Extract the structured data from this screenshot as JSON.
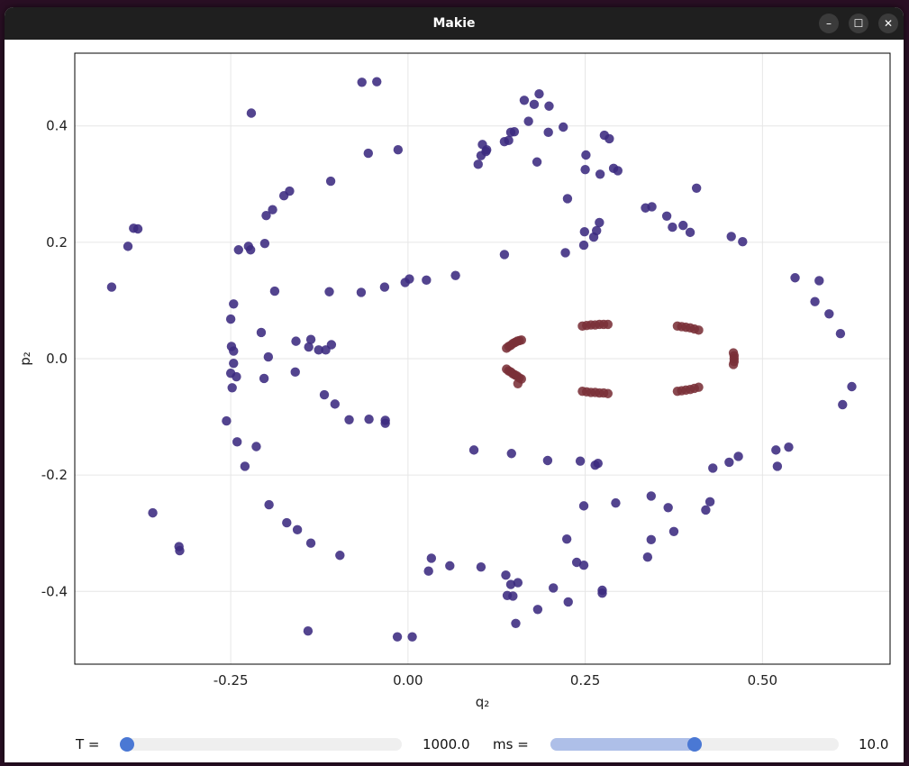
{
  "window": {
    "title": "Makie"
  },
  "window_controls": {
    "minimize": "–",
    "maximize": "☐",
    "close": "✕"
  },
  "controls": {
    "T": {
      "label": "T =",
      "value": "1000.0",
      "fraction": 0.0
    },
    "ms": {
      "label": "ms =",
      "value": "10.0",
      "fraction": 0.5
    }
  },
  "chart_data": {
    "type": "scatter",
    "xlabel": "q₂",
    "ylabel": "p₂",
    "xlim": [
      -0.47,
      0.68
    ],
    "ylim": [
      -0.525,
      0.525
    ],
    "xticks": [
      -0.25,
      0.0,
      0.25,
      0.5
    ],
    "xtick_labels": [
      "-0.25",
      "0.00",
      "0.25",
      "0.50"
    ],
    "yticks": [
      -0.4,
      -0.2,
      0.0,
      0.2,
      0.4
    ],
    "ytick_labels": [
      "-0.4",
      "-0.2",
      "0.0",
      "0.2",
      "0.4"
    ],
    "grid": true,
    "colors": {
      "outer": "#3b2a80",
      "inner": "#7a3038"
    },
    "series": [
      {
        "color": "#3b2a80",
        "points": [
          [
            -0.418,
            0.123
          ],
          [
            -0.395,
            0.193
          ],
          [
            -0.387,
            0.224
          ],
          [
            -0.381,
            0.223
          ],
          [
            -0.36,
            -0.265
          ],
          [
            -0.323,
            -0.323
          ],
          [
            -0.322,
            -0.33
          ],
          [
            -0.221,
            0.422
          ],
          [
            -0.239,
            0.187
          ],
          [
            -0.225,
            0.193
          ],
          [
            -0.222,
            0.187
          ],
          [
            -0.202,
            0.198
          ],
          [
            -0.2,
            0.246
          ],
          [
            -0.191,
            0.256
          ],
          [
            -0.175,
            0.28
          ],
          [
            -0.167,
            0.288
          ],
          [
            -0.109,
            0.305
          ],
          [
            -0.065,
            0.475
          ],
          [
            -0.044,
            0.476
          ],
          [
            -0.056,
            0.353
          ],
          [
            -0.014,
            0.359
          ],
          [
            -0.188,
            0.116
          ],
          [
            -0.111,
            0.115
          ],
          [
            -0.066,
            0.114
          ],
          [
            -0.033,
            0.123
          ],
          [
            -0.004,
            0.131
          ],
          [
            0.002,
            0.137
          ],
          [
            0.026,
            0.135
          ],
          [
            0.067,
            0.143
          ],
          [
            -0.246,
            0.094
          ],
          [
            -0.25,
            0.068
          ],
          [
            -0.207,
            0.045
          ],
          [
            -0.249,
            0.021
          ],
          [
            -0.246,
            0.013
          ],
          [
            -0.246,
            -0.008
          ],
          [
            -0.197,
            0.003
          ],
          [
            -0.25,
            -0.025
          ],
          [
            -0.242,
            -0.031
          ],
          [
            -0.203,
            -0.034
          ],
          [
            -0.248,
            -0.05
          ],
          [
            -0.158,
            0.03
          ],
          [
            -0.14,
            0.02
          ],
          [
            -0.137,
            0.033
          ],
          [
            -0.126,
            0.015
          ],
          [
            -0.116,
            0.015
          ],
          [
            -0.108,
            0.024
          ],
          [
            -0.159,
            -0.023
          ],
          [
            -0.118,
            -0.062
          ],
          [
            -0.103,
            -0.078
          ],
          [
            -0.083,
            -0.105
          ],
          [
            -0.055,
            -0.104
          ],
          [
            -0.032,
            -0.106
          ],
          [
            -0.032,
            -0.111
          ],
          [
            -0.256,
            -0.107
          ],
          [
            -0.241,
            -0.143
          ],
          [
            -0.214,
            -0.151
          ],
          [
            -0.23,
            -0.185
          ],
          [
            -0.196,
            -0.251
          ],
          [
            -0.171,
            -0.282
          ],
          [
            -0.156,
            -0.294
          ],
          [
            -0.137,
            -0.317
          ],
          [
            -0.096,
            -0.338
          ],
          [
            -0.141,
            -0.468
          ],
          [
            -0.015,
            -0.478
          ],
          [
            0.006,
            -0.478
          ],
          [
            0.029,
            -0.365
          ],
          [
            0.033,
            -0.343
          ],
          [
            0.059,
            -0.356
          ],
          [
            0.103,
            -0.358
          ],
          [
            0.138,
            -0.372
          ],
          [
            0.14,
            -0.407
          ],
          [
            0.148,
            -0.408
          ],
          [
            0.145,
            -0.388
          ],
          [
            0.155,
            -0.385
          ],
          [
            0.205,
            -0.394
          ],
          [
            0.226,
            -0.418
          ],
          [
            0.152,
            -0.455
          ],
          [
            0.183,
            -0.431
          ],
          [
            0.274,
            -0.398
          ],
          [
            0.274,
            -0.403
          ],
          [
            0.238,
            -0.35
          ],
          [
            0.248,
            -0.355
          ],
          [
            0.224,
            -0.31
          ],
          [
            0.248,
            -0.253
          ],
          [
            0.293,
            -0.248
          ],
          [
            0.093,
            -0.157
          ],
          [
            0.146,
            -0.163
          ],
          [
            0.197,
            -0.175
          ],
          [
            0.243,
            -0.176
          ],
          [
            0.264,
            -0.183
          ],
          [
            0.268,
            -0.18
          ],
          [
            0.338,
            -0.341
          ],
          [
            0.343,
            -0.311
          ],
          [
            0.343,
            -0.236
          ],
          [
            0.367,
            -0.256
          ],
          [
            0.375,
            -0.297
          ],
          [
            0.42,
            -0.26
          ],
          [
            0.426,
            -0.246
          ],
          [
            0.43,
            -0.188
          ],
          [
            0.453,
            -0.178
          ],
          [
            0.466,
            -0.168
          ],
          [
            0.519,
            -0.157
          ],
          [
            0.521,
            -0.185
          ],
          [
            0.537,
            -0.152
          ],
          [
            0.546,
            0.139
          ],
          [
            0.574,
            0.098
          ],
          [
            0.58,
            0.134
          ],
          [
            0.594,
            0.077
          ],
          [
            0.61,
            0.043
          ],
          [
            0.626,
            -0.048
          ],
          [
            0.613,
            -0.079
          ],
          [
            0.456,
            0.21
          ],
          [
            0.472,
            0.201
          ],
          [
            0.335,
            0.259
          ],
          [
            0.344,
            0.261
          ],
          [
            0.365,
            0.245
          ],
          [
            0.373,
            0.226
          ],
          [
            0.388,
            0.229
          ],
          [
            0.398,
            0.217
          ],
          [
            0.407,
            0.293
          ],
          [
            0.136,
            0.179
          ],
          [
            0.222,
            0.182
          ],
          [
            0.248,
            0.195
          ],
          [
            0.249,
            0.218
          ],
          [
            0.262,
            0.209
          ],
          [
            0.266,
            0.22
          ],
          [
            0.27,
            0.234
          ],
          [
            0.225,
            0.275
          ],
          [
            0.25,
            0.325
          ],
          [
            0.271,
            0.317
          ],
          [
            0.29,
            0.327
          ],
          [
            0.296,
            0.323
          ],
          [
            0.099,
            0.334
          ],
          [
            0.103,
            0.349
          ],
          [
            0.111,
            0.359
          ],
          [
            0.105,
            0.368
          ],
          [
            0.11,
            0.356
          ],
          [
            0.136,
            0.373
          ],
          [
            0.142,
            0.375
          ],
          [
            0.145,
            0.389
          ],
          [
            0.15,
            0.39
          ],
          [
            0.164,
            0.444
          ],
          [
            0.17,
            0.408
          ],
          [
            0.178,
            0.437
          ],
          [
            0.185,
            0.455
          ],
          [
            0.199,
            0.434
          ],
          [
            0.198,
            0.389
          ],
          [
            0.182,
            0.338
          ],
          [
            0.219,
            0.398
          ],
          [
            0.251,
            0.35
          ],
          [
            0.277,
            0.384
          ],
          [
            0.284,
            0.378
          ]
        ]
      },
      {
        "color": "#7a3038",
        "points": [
          [
            0.139,
            0.018
          ],
          [
            0.142,
            0.021
          ],
          [
            0.145,
            0.023
          ],
          [
            0.148,
            0.026
          ],
          [
            0.151,
            0.028
          ],
          [
            0.154,
            0.03
          ],
          [
            0.157,
            0.031
          ],
          [
            0.16,
            0.032
          ],
          [
            0.139,
            -0.018
          ],
          [
            0.142,
            -0.021
          ],
          [
            0.145,
            -0.023
          ],
          [
            0.148,
            -0.026
          ],
          [
            0.151,
            -0.028
          ],
          [
            0.154,
            -0.03
          ],
          [
            0.157,
            -0.033
          ],
          [
            0.16,
            -0.035
          ],
          [
            0.155,
            -0.043
          ],
          [
            0.246,
            0.056
          ],
          [
            0.252,
            0.057
          ],
          [
            0.258,
            0.058
          ],
          [
            0.264,
            0.058
          ],
          [
            0.27,
            0.059
          ],
          [
            0.276,
            0.059
          ],
          [
            0.282,
            0.059
          ],
          [
            0.246,
            -0.056
          ],
          [
            0.252,
            -0.057
          ],
          [
            0.258,
            -0.058
          ],
          [
            0.264,
            -0.058
          ],
          [
            0.27,
            -0.059
          ],
          [
            0.276,
            -0.059
          ],
          [
            0.282,
            -0.06
          ],
          [
            0.38,
            0.056
          ],
          [
            0.386,
            0.055
          ],
          [
            0.392,
            0.054
          ],
          [
            0.398,
            0.053
          ],
          [
            0.404,
            0.051
          ],
          [
            0.41,
            0.049
          ],
          [
            0.38,
            -0.056
          ],
          [
            0.386,
            -0.055
          ],
          [
            0.392,
            -0.054
          ],
          [
            0.398,
            -0.053
          ],
          [
            0.404,
            -0.051
          ],
          [
            0.41,
            -0.049
          ],
          [
            0.459,
            0.01
          ],
          [
            0.46,
            0.005
          ],
          [
            0.46,
            0.0
          ],
          [
            0.46,
            -0.005
          ],
          [
            0.459,
            -0.01
          ]
        ]
      }
    ]
  }
}
